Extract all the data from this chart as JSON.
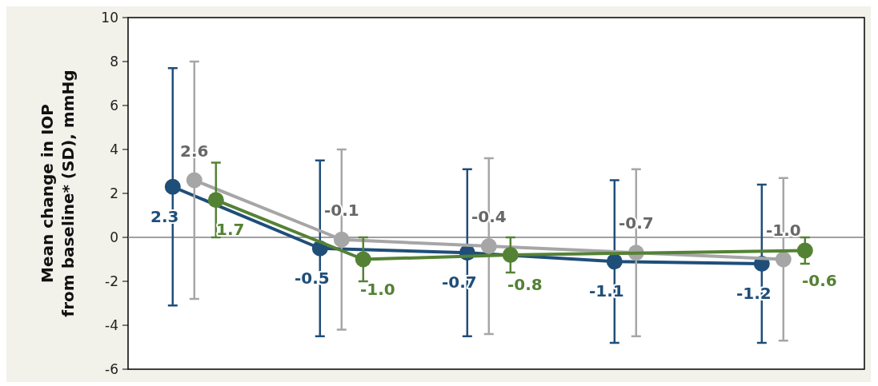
{
  "chart_data": {
    "type": "line",
    "ylabel": "Mean change in IOP\nfrom baseline* (SD), mmHg",
    "categories": [
      null,
      null,
      null,
      null,
      null
    ],
    "ylim": [
      -6,
      10
    ],
    "yticks": [
      -6,
      -4,
      -2,
      0,
      2,
      4,
      6,
      8,
      10
    ],
    "marker": "circle",
    "line_style": "solid",
    "ref_lines": [
      {
        "axis": "y",
        "value": 0,
        "color": "#808080"
      }
    ],
    "series": [
      {
        "color": "#1f4e79",
        "values": [
          2.3,
          -0.5,
          -0.7,
          -1.1,
          -1.2
        ],
        "errors": [
          5.4,
          4.0,
          3.8,
          3.7,
          3.6
        ],
        "value_labels": [
          "2.3",
          "-0.5",
          "-0.7",
          "-1.1",
          "-1.2"
        ]
      },
      {
        "color": "#a6a6a6",
        "values": [
          2.6,
          -0.1,
          -0.4,
          -0.7,
          -1.0
        ],
        "errors": [
          5.4,
          4.1,
          4.0,
          3.8,
          3.7
        ],
        "value_labels": [
          "2.6",
          "-0.1",
          "-0.4",
          "-0.7",
          "-1.0"
        ]
      },
      {
        "color": "#548235",
        "values": [
          1.7,
          -1.0,
          -0.8,
          null,
          -0.6
        ],
        "errors": [
          1.7,
          1.0,
          0.8,
          null,
          0.6
        ],
        "value_labels": [
          "1.7",
          "-1.0",
          "-0.8",
          null,
          "-0.6"
        ]
      }
    ]
  }
}
